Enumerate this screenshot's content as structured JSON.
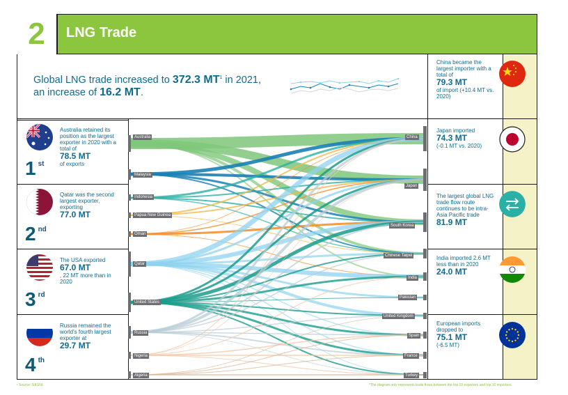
{
  "section": {
    "number": "2",
    "title": "LNG Trade"
  },
  "intro": {
    "prefix": "Global LNG trade increased to ",
    "total": "372.3 MT",
    "sup": "1",
    "mid": " in 2021,",
    "line2": "an increase of ",
    "increase": "16.2 MT",
    "end": "."
  },
  "exporters_ranked": [
    {
      "rank": "1",
      "suffix": "st",
      "text": "Australia retained its position as the largest exporter in 2020 with a total of",
      "value": "78.5 MT",
      "after": "of exports",
      "flag": "australia-flag-icon"
    },
    {
      "rank": "2",
      "suffix": "nd",
      "text": "Qatar was the second largest exporter, exporting",
      "value": "77.0 MT",
      "after": "",
      "flag": "qatar-flag-icon"
    },
    {
      "rank": "3",
      "suffix": "rd",
      "text": "The USA exported",
      "value": "67.0 MT",
      "after": ", 22 MT more than in 2020",
      "flag": "usa-flag-icon"
    },
    {
      "rank": "4",
      "suffix": "th",
      "text": "Russia remained the world's fourth largest exporter at",
      "value": "29.7 MT",
      "after": "",
      "flag": "russia-flag-icon"
    }
  ],
  "importer_notes": [
    {
      "text": "China became the largest importer with a total of",
      "value": "79.3 MT",
      "after": "of import (+10.4 MT vs. 2020)",
      "icon": "china-flag-icon"
    },
    {
      "text": "Japan imported",
      "value": "74.3 MT",
      "after": "(-0.1 MT vs. 2020)",
      "icon": "japan-flag-icon"
    },
    {
      "text": "The largest global LNG trade flow route continues to be intra-Asia Pacific trade",
      "value": "81.9 MT",
      "after": "",
      "icon": "trade-route-icon"
    },
    {
      "text": "India imported 2.6 MT less than in 2020",
      "value": "24.0 MT",
      "after": "",
      "icon": "india-flag-icon"
    },
    {
      "text": "European imports dropped to",
      "value": "75.1 MT",
      "after": "(-6.5 MT)",
      "icon": "eu-flag-icon"
    }
  ],
  "flow": {
    "exporters": [
      "Australia",
      "Malaysia",
      "Indonesia",
      "Papua New Guinea",
      "Oman",
      "Qatar",
      "United States",
      "Russia",
      "Nigeria",
      "Algeria"
    ],
    "importers": [
      "China",
      "Japan",
      "South Korea",
      "Chinese Taipei",
      "India",
      "Pakistan",
      "United Kingdom",
      "Spain",
      "France",
      "Turkey"
    ],
    "colors": {
      "Australia": "#7fc77a",
      "Malaysia": "#1a7fb5",
      "Indonesia": "#2bb0a5",
      "Papua New Guinea": "#f2b84b",
      "Oman": "#f28c28",
      "Qatar": "#8fd3f0",
      "United States": "#1a9c8c",
      "Russia": "#b8ccd6",
      "Nigeria": "#f3c7a6",
      "Algeria": "#d9b99b"
    }
  },
  "footnotes": {
    "left": "¹ Source: GIIGNL",
    "right": "*The diagram only represents trade flows between the top 10 exporters and top 10 importers."
  }
}
